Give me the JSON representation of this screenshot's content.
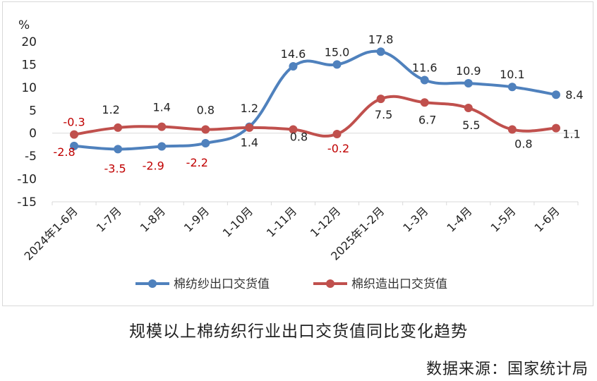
{
  "chart_data": {
    "type": "line",
    "ylabel": "%",
    "ylim": [
      -15,
      20
    ],
    "yticks": [
      20,
      15,
      10,
      5,
      0,
      -5,
      -10,
      -15
    ],
    "categories": [
      "2024年1-6月",
      "1-7月",
      "1-8月",
      "1-9月",
      "1-10月",
      "1-11月",
      "1-12月",
      "2025年1-2月",
      "1-3月",
      "1-4月",
      "1-5月",
      "1-6月"
    ],
    "series": [
      {
        "name": "棉纺纱出口交货值",
        "color": "#4f81bd",
        "values": [
          -2.8,
          -3.5,
          -2.9,
          -2.2,
          1.4,
          14.6,
          15.0,
          17.8,
          11.6,
          10.9,
          10.1,
          8.4
        ],
        "labels": [
          "-2.8",
          "-3.5",
          "-2.9",
          "-2.2",
          "1.4",
          "14.6",
          "15.0",
          "17.8",
          "11.6",
          "10.9",
          "10.1",
          "8.4"
        ]
      },
      {
        "name": "棉织造出口交货值",
        "color": "#c0504d",
        "values": [
          -0.3,
          1.2,
          1.4,
          0.8,
          1.2,
          0.8,
          -0.2,
          7.5,
          6.7,
          5.5,
          0.8,
          1.1
        ],
        "labels": [
          "-0.3",
          "1.2",
          "1.4",
          "0.8",
          "1.2",
          "0.8",
          "-0.2",
          "7.5",
          "6.7",
          "5.5",
          "0.8",
          "1.1"
        ]
      }
    ],
    "grid": false,
    "legend_position": "bottom"
  },
  "caption": "规模以上棉纺织行业出口交货值同比变化趋势",
  "source": "数据来源：国家统计局"
}
